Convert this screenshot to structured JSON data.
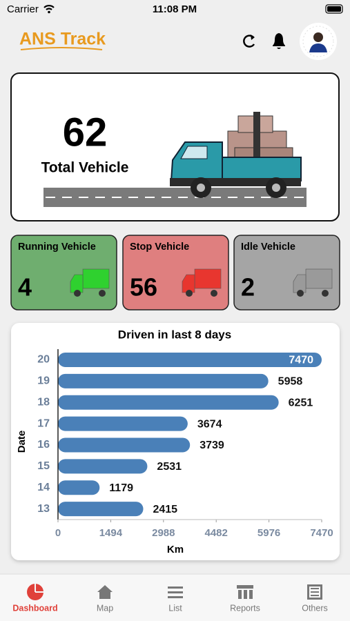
{
  "status_bar": {
    "carrier": "Carrier",
    "time": "11:08 PM"
  },
  "header": {
    "logo": "ANS Track"
  },
  "summary": {
    "total": 62,
    "label": "Total Vehicle"
  },
  "cards": [
    {
      "title": "Running Vehicle",
      "count": 4,
      "color": "#6fae6f"
    },
    {
      "title": "Stop Vehicle",
      "count": 56,
      "color": "#df7f7f"
    },
    {
      "title": "Idle Vehicle",
      "count": 2,
      "color": "#a5a5a5"
    }
  ],
  "chart_data": {
    "type": "hbar",
    "title": "Driven in last 8 days",
    "y_label": "Date",
    "x_label": "Km",
    "categories": [
      "20",
      "19",
      "18",
      "17",
      "16",
      "15",
      "14",
      "13"
    ],
    "values": [
      7470,
      5958,
      6251,
      3674,
      3739,
      2531,
      1179,
      2415
    ],
    "color": "#4a80b8",
    "xlim": [
      0,
      7470
    ],
    "xticks": [
      0,
      1494,
      2988,
      4482,
      5976,
      7470
    ]
  },
  "tabs": [
    "Dashboard",
    "Map",
    "List",
    "Reports",
    "Others"
  ]
}
